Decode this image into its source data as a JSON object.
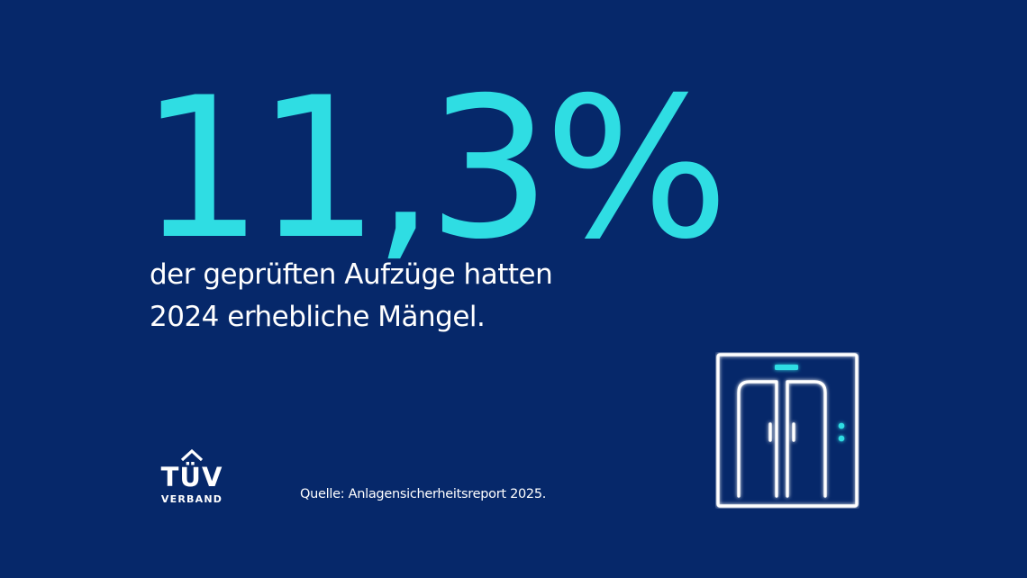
{
  "headline": {
    "value": "11,3%"
  },
  "caption": {
    "line1": "der geprüften Aufzüge hatten",
    "line2": "2024 erhebliche Mängel."
  },
  "logo": {
    "word": "TÜV",
    "sub": "VERBAND"
  },
  "source": {
    "text": "Quelle: Anlagensicherheitsreport 2025."
  },
  "icons": {
    "elevator": "elevator-icon"
  },
  "colors": {
    "background": "#06286a",
    "accent": "#2fdde3",
    "text": "#ffffff"
  }
}
